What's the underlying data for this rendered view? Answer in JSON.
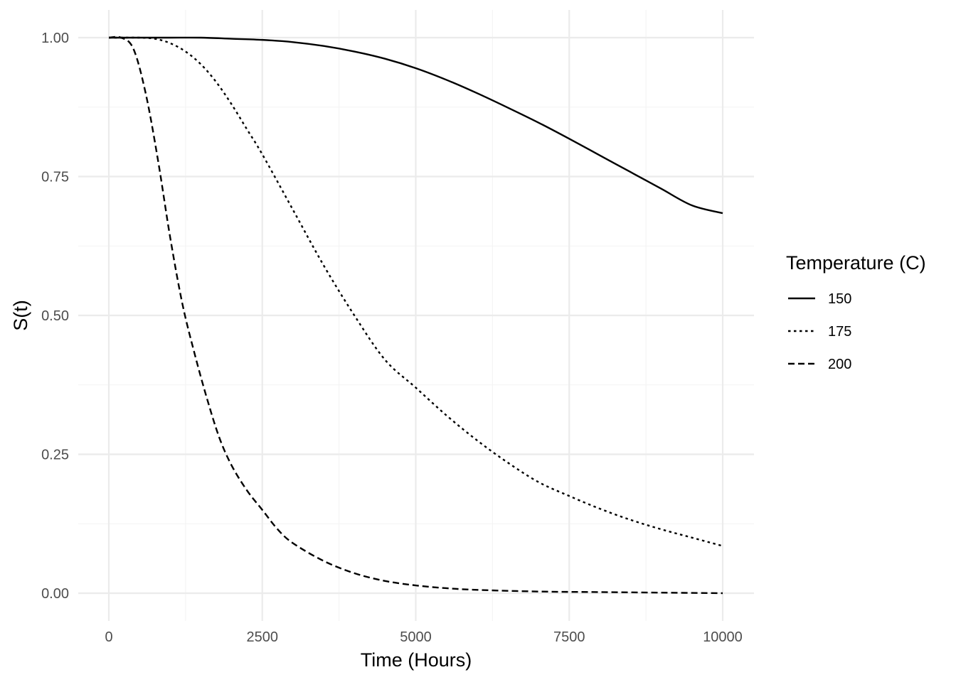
{
  "chart_data": {
    "type": "line",
    "xlabel": "Time (Hours)",
    "ylabel": "S(t)",
    "xlim": [
      0,
      10000
    ],
    "ylim": [
      0,
      1
    ],
    "x_ticks": [
      0,
      2500,
      5000,
      7500,
      10000
    ],
    "x_tick_labels": [
      "0",
      "2500",
      "5000",
      "7500",
      "10000"
    ],
    "y_ticks": [
      0,
      0.25,
      0.5,
      0.75,
      1
    ],
    "y_tick_labels": [
      "0.00",
      "0.25",
      "0.50",
      "0.75",
      "1.00"
    ],
    "grid": true,
    "legend": {
      "title": "Temperature (C)",
      "position": "right"
    },
    "series": [
      {
        "name": "150",
        "linetype": "solid",
        "x": [
          0,
          500,
          1000,
          1500,
          2000,
          2500,
          3000,
          3500,
          4000,
          4500,
          5000,
          5500,
          6000,
          6500,
          7000,
          7500,
          8000,
          8500,
          9000,
          9500,
          10000
        ],
        "y": [
          1.0,
          1.0,
          1.0,
          1.0,
          0.998,
          0.996,
          0.992,
          0.985,
          0.975,
          0.962,
          0.945,
          0.924,
          0.9,
          0.874,
          0.847,
          0.818,
          0.788,
          0.758,
          0.728,
          0.698,
          0.684
        ]
      },
      {
        "name": "175",
        "linetype": "dotted",
        "x": [
          0,
          250,
          500,
          750,
          1000,
          1250,
          1500,
          1750,
          2000,
          2250,
          2500,
          3000,
          3500,
          4000,
          4500,
          5000,
          5500,
          6000,
          6500,
          7000,
          7500,
          8000,
          8500,
          9000,
          9500,
          10000
        ],
        "y": [
          1.0,
          1.0,
          1.0,
          0.998,
          0.99,
          0.975,
          0.952,
          0.92,
          0.88,
          0.835,
          0.79,
          0.69,
          0.59,
          0.5,
          0.42,
          0.37,
          0.32,
          0.275,
          0.235,
          0.2,
          0.175,
          0.152,
          0.132,
          0.115,
          0.1,
          0.085
        ]
      },
      {
        "name": "200",
        "linetype": "dashed",
        "x": [
          0,
          200,
          400,
          600,
          800,
          1000,
          1200,
          1400,
          1600,
          1800,
          2000,
          2250,
          2500,
          2750,
          3000,
          3500,
          4000,
          4500,
          5000,
          5500,
          6000,
          7000,
          8000,
          9000,
          10000
        ],
        "y": [
          1.0,
          1.0,
          0.98,
          0.9,
          0.78,
          0.64,
          0.52,
          0.43,
          0.35,
          0.28,
          0.23,
          0.185,
          0.15,
          0.115,
          0.09,
          0.058,
          0.036,
          0.022,
          0.014,
          0.009,
          0.006,
          0.003,
          0.002,
          0.001,
          0.0
        ]
      }
    ]
  }
}
